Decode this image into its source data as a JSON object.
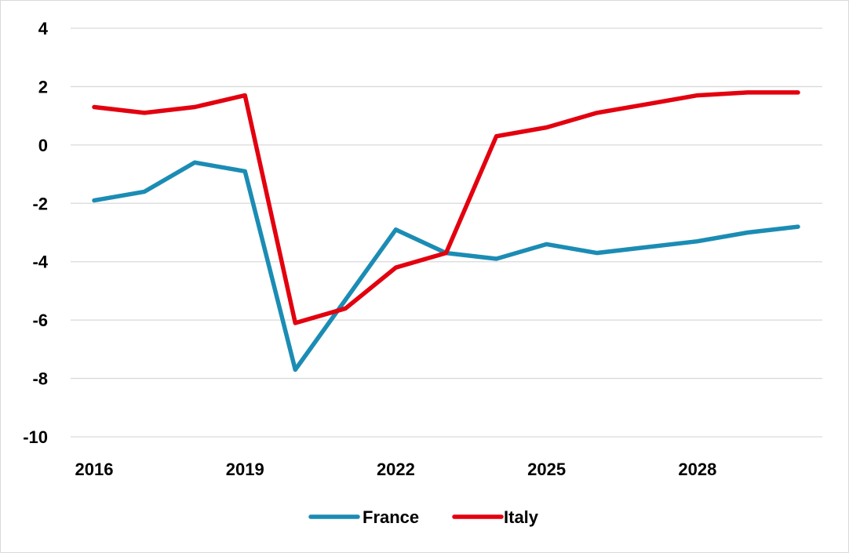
{
  "chart_data": {
    "type": "line",
    "title": "",
    "xlabel": "",
    "ylabel": "",
    "x": [
      2016,
      2017,
      2018,
      2019,
      2020,
      2021,
      2022,
      2023,
      2024,
      2025,
      2026,
      2027,
      2028,
      2029,
      2030
    ],
    "x_tick_labels": [
      "2016",
      "2019",
      "2022",
      "2025",
      "2028"
    ],
    "x_tick_values": [
      2016,
      2019,
      2022,
      2025,
      2028
    ],
    "ylim": [
      -10,
      4
    ],
    "y_ticks": [
      4,
      2,
      0,
      -2,
      -4,
      -6,
      -8,
      -10
    ],
    "y_tick_labels": [
      "4",
      "2",
      "0",
      "-2",
      "-4",
      "-6",
      "-8",
      "-10"
    ],
    "grid": true,
    "legend_position": "bottom",
    "series": [
      {
        "name": "France",
        "color": "#1b8cb4",
        "values": [
          -1.9,
          -1.6,
          -0.6,
          -0.9,
          -7.7,
          -5.3,
          -2.9,
          -3.7,
          -3.9,
          -3.4,
          -3.7,
          -3.5,
          -3.3,
          -3.0,
          -2.8
        ]
      },
      {
        "name": "Italy",
        "color": "#e3000f",
        "values": [
          1.3,
          1.1,
          1.3,
          1.7,
          -6.1,
          -5.6,
          -4.2,
          -3.7,
          0.3,
          0.6,
          1.1,
          1.4,
          1.7,
          1.8,
          1.8
        ]
      }
    ]
  }
}
